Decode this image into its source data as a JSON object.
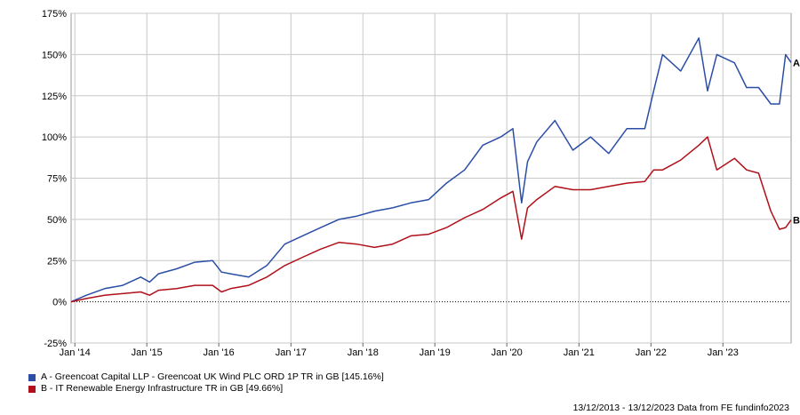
{
  "chart_data": {
    "type": "line",
    "x_axis": {
      "tick_labels": [
        "Jan '14",
        "Jan '15",
        "Jan '16",
        "Jan '17",
        "Jan '18",
        "Jan '19",
        "Jan '20",
        "Jan '21",
        "Jan '22",
        "Jan '23"
      ],
      "range": [
        "2013-12-13",
        "2023-12-13"
      ]
    },
    "y_axis": {
      "tick_labels": [
        "-25%",
        "0%",
        "25%",
        "50%",
        "75%",
        "100%",
        "125%",
        "150%",
        "175%"
      ],
      "ticks": [
        -25,
        0,
        25,
        50,
        75,
        100,
        125,
        150,
        175
      ],
      "ylim": [
        -25,
        175
      ],
      "unit": "%"
    },
    "grid": true,
    "zero_line": "dotted",
    "x": [
      "2013-12-13",
      "2014-03-01",
      "2014-06-01",
      "2014-09-01",
      "2014-12-01",
      "2015-01-15",
      "2015-03-01",
      "2015-06-01",
      "2015-09-01",
      "2015-12-01",
      "2016-01-15",
      "2016-03-01",
      "2016-06-01",
      "2016-09-01",
      "2016-12-01",
      "2017-03-01",
      "2017-06-01",
      "2017-09-01",
      "2017-12-01",
      "2018-03-01",
      "2018-06-01",
      "2018-09-01",
      "2018-12-01",
      "2019-03-01",
      "2019-06-01",
      "2019-09-01",
      "2019-12-01",
      "2020-02-01",
      "2020-03-16",
      "2020-04-15",
      "2020-06-01",
      "2020-09-01",
      "2020-12-01",
      "2021-03-01",
      "2021-06-01",
      "2021-09-01",
      "2021-12-01",
      "2022-01-15",
      "2022-03-01",
      "2022-06-01",
      "2022-09-01",
      "2022-10-15",
      "2022-12-01",
      "2023-03-01",
      "2023-05-01",
      "2023-07-01",
      "2023-09-01",
      "2023-10-15",
      "2023-11-15",
      "2023-12-13"
    ],
    "series": [
      {
        "label": "A",
        "name": "A - Greencoat Capital LLP - Greencoat UK Wind PLC ORD 1P TR in GB [145.16%]",
        "color": "#2a4ea6",
        "values": [
          0,
          4,
          8,
          10,
          15,
          12,
          17,
          20,
          24,
          25,
          18,
          17,
          15,
          22,
          35,
          40,
          45,
          50,
          52,
          55,
          57,
          60,
          62,
          72,
          80,
          95,
          100,
          105,
          60,
          85,
          97,
          110,
          92,
          100,
          90,
          105,
          105,
          128,
          150,
          140,
          160,
          128,
          150,
          145,
          130,
          130,
          120,
          120,
          150,
          145.16
        ]
      },
      {
        "label": "B",
        "name": "B - IT Renewable Energy Infrastructure TR in GB [49.66%]",
        "color": "#b0101a",
        "values": [
          0,
          2,
          4,
          5,
          6,
          4,
          7,
          8,
          10,
          10,
          6,
          8,
          10,
          15,
          22,
          27,
          32,
          36,
          35,
          33,
          35,
          40,
          41,
          45,
          51,
          56,
          63,
          67,
          38,
          57,
          62,
          70,
          68,
          68,
          70,
          72,
          73,
          80,
          80,
          86,
          95,
          100,
          80,
          87,
          80,
          78,
          55,
          44,
          45,
          49.66
        ]
      }
    ]
  },
  "legend": {
    "items": [
      {
        "text": "A - Greencoat Capital LLP - Greencoat UK Wind PLC ORD 1P TR in GB [145.16%]",
        "color": "#2a4ea6"
      },
      {
        "text": "B - IT Renewable Energy Infrastructure TR in GB [49.66%]",
        "color": "#b0101a"
      }
    ]
  },
  "footer": "13/12/2013 - 13/12/2023 Data from FE fundinfo2023"
}
